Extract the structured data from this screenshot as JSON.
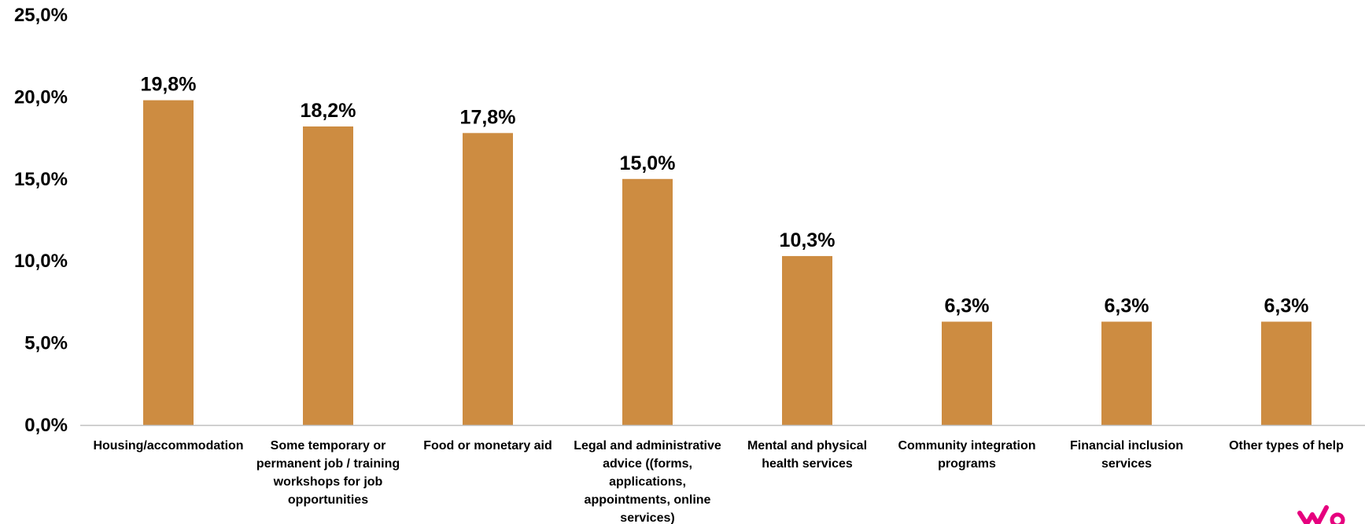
{
  "chart_data": {
    "type": "bar",
    "categories": [
      "Housing/accommodation",
      "Some temporary or permanent job / training workshops for job opportunities",
      "Food or monetary aid",
      "Legal and administrative advice ((forms, applications, appointments, online services)",
      "Mental and physical health services",
      "Community integration programs",
      "Financial inclusion services",
      "Other types of help"
    ],
    "category_lines": [
      [
        "Housing/accommodation"
      ],
      [
        "Some temporary or",
        "permanent job / training",
        "workshops for job",
        "opportunities"
      ],
      [
        "Food or monetary aid"
      ],
      [
        "Legal and administrative",
        "advice ((forms,",
        "applications,",
        "appointments, online",
        "services)"
      ],
      [
        "Mental and physical",
        "health services"
      ],
      [
        "Community integration",
        "programs"
      ],
      [
        "Financial inclusion",
        "services"
      ],
      [
        "Other types of help"
      ]
    ],
    "values": [
      19.8,
      18.2,
      17.8,
      15.0,
      10.3,
      6.3,
      6.3,
      6.3
    ],
    "data_labels": [
      "19,8%",
      "18,2%",
      "17,8%",
      "15,0%",
      "10,3%",
      "6,3%",
      "6,3%",
      "6,3%"
    ],
    "y_ticks": [
      0,
      5,
      10,
      15,
      20,
      25
    ],
    "y_tick_labels": [
      "0,0%",
      "5,0%",
      "10,0%",
      "15,0%",
      "20,0%",
      "25,0%"
    ],
    "ylim": [
      0,
      25
    ],
    "title": "",
    "xlabel": "",
    "ylabel": "",
    "grid": false,
    "legend": "none",
    "bar_color": "#CD8C41",
    "axis_color": "#BFBFBF"
  },
  "logo": {
    "color": "#E6007E",
    "icon": "brand-logo-icon"
  }
}
